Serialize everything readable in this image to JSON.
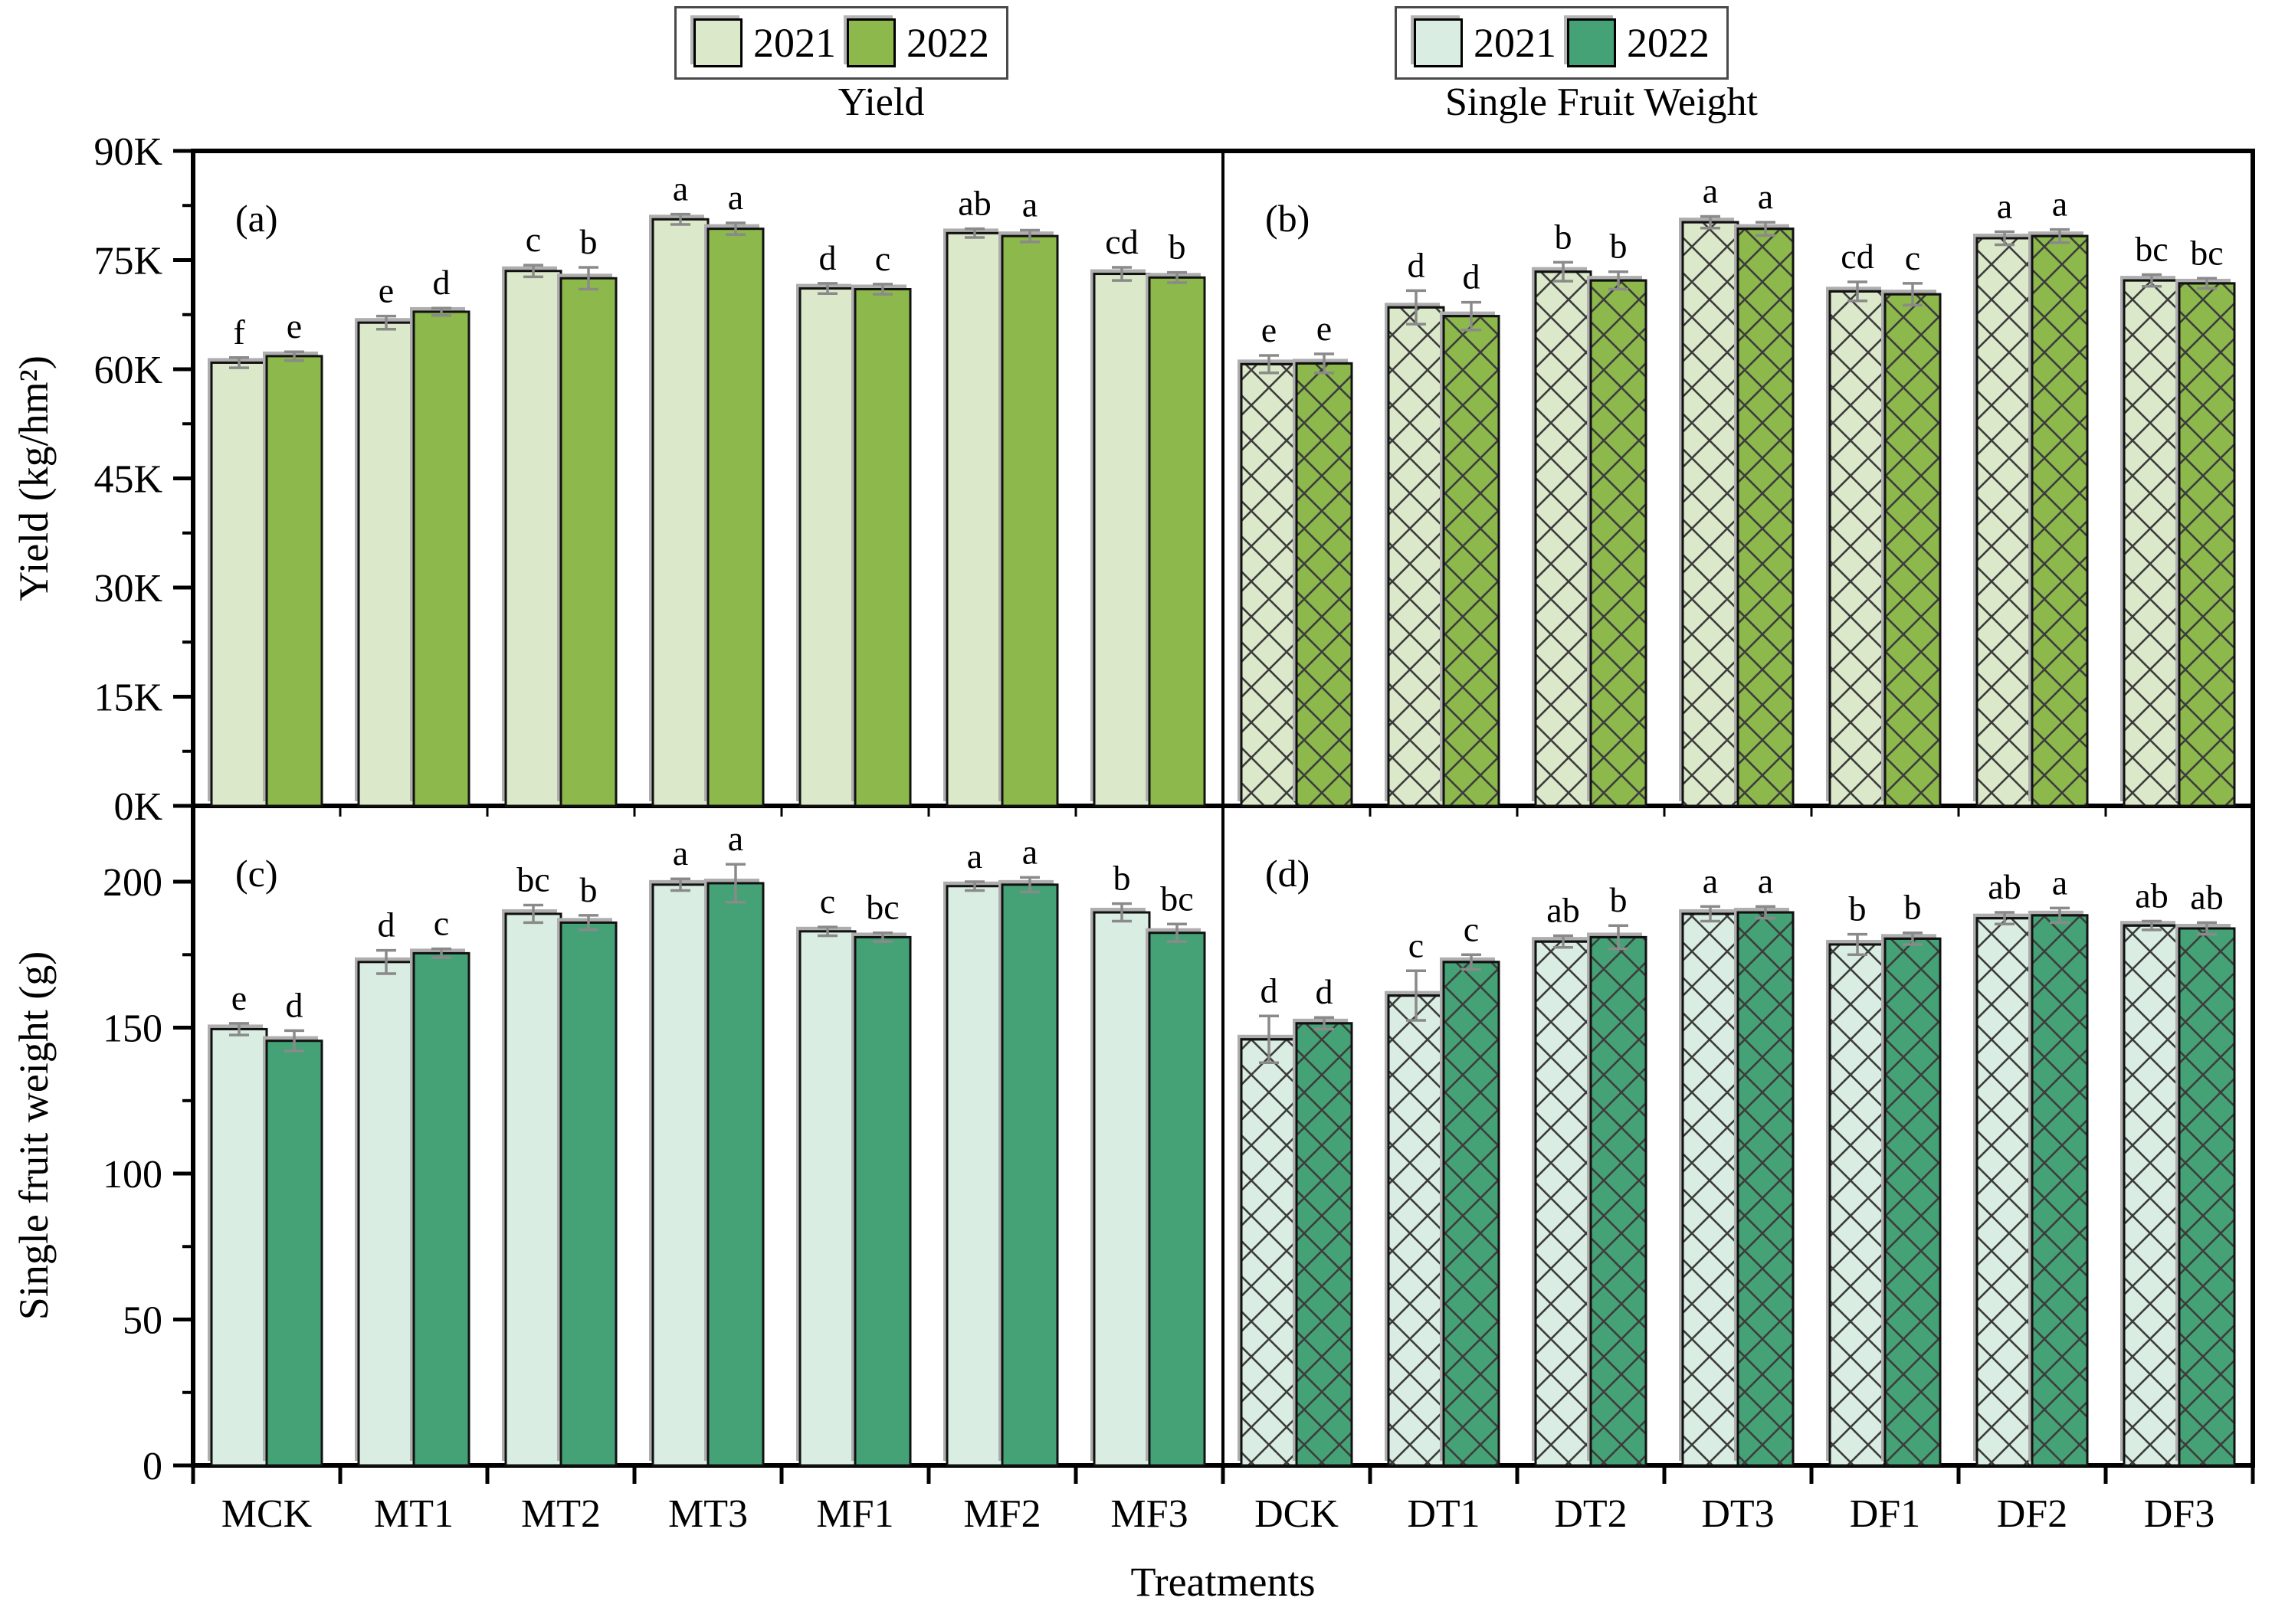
{
  "figure": {
    "xlabel": "Treatments",
    "legends": [
      {
        "id": "yield",
        "title": "Yield",
        "entries": [
          {
            "label": "2021",
            "color": "#dce8ca"
          },
          {
            "label": "2022",
            "color": "#8cb84c"
          }
        ]
      },
      {
        "id": "single-fruit-weight",
        "title": "Single Fruit Weight",
        "entries": [
          {
            "label": "2021",
            "color": "#d9ede2"
          },
          {
            "label": "2022",
            "color": "#44a276"
          }
        ]
      }
    ]
  },
  "chart_data": {
    "type": "bar",
    "xlabel": "Treatments",
    "rows": [
      {
        "ylabel": "Yield (kg/hm²)",
        "ylim": [
          0,
          90000
        ],
        "yticks": [
          [
            "0K",
            0
          ],
          [
            "15K",
            15000
          ],
          [
            "30K",
            30000
          ],
          [
            "45K",
            45000
          ],
          [
            "60K",
            60000
          ],
          [
            "75K",
            75000
          ],
          [
            "90K",
            90000
          ]
        ],
        "yminor_step": 7500
      },
      {
        "ylabel": "Single fruit weight (g)",
        "ylim": [
          0,
          226
        ],
        "yticks": [
          [
            "0",
            0
          ],
          [
            "50",
            50
          ],
          [
            "100",
            100
          ],
          [
            "150",
            150
          ],
          [
            "200",
            200
          ]
        ],
        "yminor_step": 25
      }
    ],
    "columns": [
      {
        "categories": [
          "MCK",
          "MT1",
          "MT2",
          "MT3",
          "MF1",
          "MF2",
          "MF3"
        ],
        "hatch": false
      },
      {
        "categories": [
          "DCK",
          "DT1",
          "DT2",
          "DT3",
          "DF1",
          "DF2",
          "DF3"
        ],
        "hatch": true
      }
    ],
    "panels": [
      {
        "label": "(a)",
        "row": 0,
        "col": 0,
        "series": [
          {
            "name": "2021",
            "color": "#dce8ca",
            "values": [
              60900,
              66400,
              73500,
              80600,
              71100,
              78700,
              73100
            ],
            "errors": [
              700,
              900,
              800,
              700,
              700,
              600,
              900
            ],
            "letters": [
              "f",
              "e",
              "c",
              "a",
              "d",
              "ab",
              "cd"
            ]
          },
          {
            "name": "2022",
            "color": "#8cb84c",
            "values": [
              61800,
              67900,
              72500,
              79300,
              71000,
              78300,
              72600
            ],
            "errors": [
              600,
              500,
              1500,
              800,
              700,
              800,
              700
            ],
            "letters": [
              "e",
              "d",
              "b",
              "a",
              "c",
              "a",
              "b"
            ]
          }
        ]
      },
      {
        "label": "(b)",
        "row": 0,
        "col": 1,
        "series": [
          {
            "name": "2021",
            "color": "#dce8ca",
            "values": [
              60700,
              68500,
              73400,
              80200,
              70700,
              78000,
              72200
            ],
            "errors": [
              1200,
              2300,
              1300,
              800,
              1300,
              900,
              800
            ],
            "letters": [
              "e",
              "d",
              "b",
              "a",
              "cd",
              "a",
              "bc"
            ]
          },
          {
            "name": "2022",
            "color": "#8cb84c",
            "values": [
              60800,
              67300,
              72200,
              79300,
              70300,
              78300,
              71800
            ],
            "errors": [
              1300,
              1900,
              1200,
              900,
              1500,
              900,
              700
            ],
            "letters": [
              "e",
              "d",
              "b",
              "a",
              "c",
              "a",
              "bc"
            ]
          }
        ]
      },
      {
        "label": "(c)",
        "row": 1,
        "col": 0,
        "series": [
          {
            "name": "2021",
            "color": "#d9ede2",
            "values": [
              149.5,
              172.5,
              189,
              199,
              183,
              198.5,
              189.5
            ],
            "errors": [
              2,
              4,
              3,
              2,
              1.5,
              1.5,
              3
            ],
            "letters": [
              "e",
              "d",
              "bc",
              "a",
              "c",
              "a",
              "b"
            ]
          },
          {
            "name": "2022",
            "color": "#44a276",
            "values": [
              145.5,
              175.5,
              186,
              199.5,
              181,
              199,
              182.5
            ],
            "errors": [
              3.5,
              1.5,
              2.5,
              6.5,
              1.5,
              2.5,
              3
            ],
            "letters": [
              "d",
              "c",
              "b",
              "a",
              "bc",
              "a",
              "bc"
            ]
          }
        ]
      },
      {
        "label": "(d)",
        "row": 1,
        "col": 1,
        "series": [
          {
            "name": "2021",
            "color": "#d9ede2",
            "values": [
              146,
              161,
              179.5,
              189,
              178.5,
              187.5,
              185
            ],
            "errors": [
              8,
              8.5,
              2,
              2.5,
              3.5,
              2,
              1.5
            ],
            "letters": [
              "d",
              "c",
              "ab",
              "a",
              "b",
              "ab",
              "ab"
            ]
          },
          {
            "name": "2022",
            "color": "#44a276",
            "values": [
              151.5,
              172.5,
              181,
              189.5,
              180.5,
              188.5,
              184
            ],
            "errors": [
              2,
              2.5,
              4,
              2,
              2,
              2.5,
              2
            ],
            "letters": [
              "d",
              "c",
              "b",
              "a",
              "b",
              "a",
              "ab"
            ]
          }
        ]
      }
    ]
  }
}
